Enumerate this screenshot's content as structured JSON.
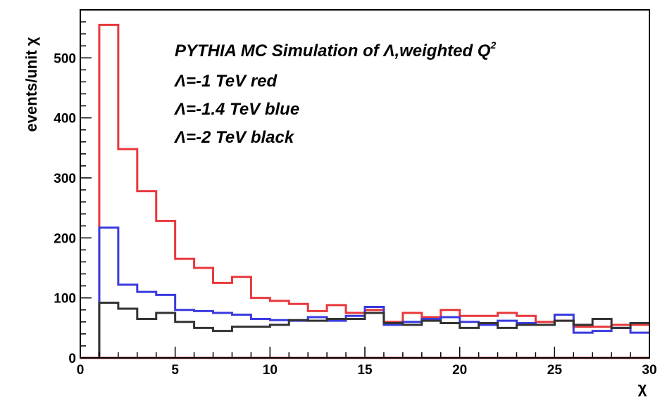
{
  "chart_data": {
    "type": "line",
    "style": "step-histogram",
    "title": "",
    "xlabel": "χ",
    "ylabel": "events/unit χ",
    "xlim": [
      0,
      30
    ],
    "ylim": [
      0,
      580
    ],
    "x_ticks": [
      "0",
      "5",
      "10",
      "15",
      "20",
      "25",
      "30"
    ],
    "y_ticks": [
      "0",
      "100",
      "200",
      "300",
      "400",
      "500"
    ],
    "grid": false,
    "legend": "none",
    "annotations": {
      "title_text": "PYTHIA MC Simulation of Λ,weighted Q",
      "title_superscript": "2",
      "line1": "Λ=-1 TeV red",
      "line2": "Λ=-1.4 TeV blue",
      "line3": "Λ=-2 TeV black"
    },
    "bin_edges": [
      1,
      2,
      3,
      4,
      5,
      6,
      7,
      8,
      9,
      10,
      11,
      12,
      13,
      14,
      15,
      16,
      17,
      18,
      19,
      20,
      21,
      22,
      23,
      24,
      25,
      26,
      27,
      28,
      29,
      30
    ],
    "series": [
      {
        "color": "#e8383b",
        "values": [
          555,
          348,
          278,
          228,
          165,
          150,
          125,
          135,
          100,
          95,
          90,
          78,
          88,
          75,
          80,
          60,
          75,
          68,
          80,
          70,
          70,
          75,
          70,
          60,
          62,
          52,
          52,
          55,
          55
        ]
      },
      {
        "color": "#3a3ae0",
        "values": [
          217,
          122,
          110,
          105,
          80,
          78,
          75,
          72,
          65,
          63,
          62,
          68,
          62,
          70,
          85,
          55,
          60,
          65,
          68,
          60,
          55,
          62,
          58,
          55,
          72,
          42,
          45,
          50,
          42
        ]
      },
      {
        "color": "#333333",
        "values": [
          92,
          82,
          65,
          75,
          60,
          50,
          45,
          52,
          52,
          55,
          63,
          62,
          65,
          65,
          75,
          58,
          55,
          62,
          58,
          50,
          58,
          50,
          55,
          55,
          62,
          55,
          65,
          50,
          58
        ]
      }
    ]
  }
}
